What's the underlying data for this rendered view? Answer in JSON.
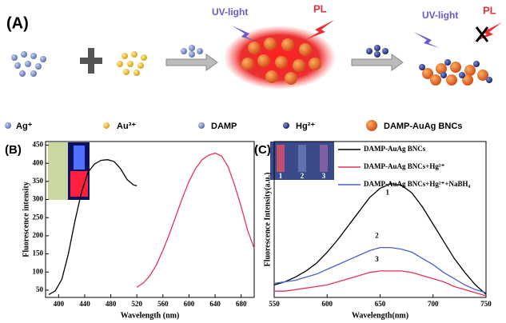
{
  "schematic": {
    "label": "(A)",
    "uv_left": "UV-light",
    "pl_left": "PL",
    "uv_right": "UV-light",
    "pl_right": "PL",
    "legend": [
      "Ag⁺",
      "Au³⁺",
      "DAMP",
      "Hg²⁺",
      "DAMP-AuAg BNCs"
    ]
  },
  "panel_labels": [
    "(B)",
    "(C)"
  ],
  "chart_data": [
    {
      "type": "line",
      "xlabel": "Wavelength (nm)",
      "ylabel": "Fluorescence intensity",
      "xlim": [
        380,
        700
      ],
      "xticks": [
        400,
        440,
        480,
        520,
        560,
        600,
        640,
        680
      ],
      "ylim": [
        30,
        460
      ],
      "yticks": [
        50,
        100,
        150,
        200,
        250,
        300,
        350,
        400,
        450
      ],
      "series": [
        {
          "color": "#000000",
          "x": [
            385,
            395,
            405,
            415,
            425,
            435,
            445,
            455,
            465,
            475,
            485,
            495,
            505,
            515,
            520
          ],
          "values": [
            38,
            48,
            80,
            150,
            240,
            320,
            375,
            398,
            408,
            410,
            405,
            385,
            355,
            340,
            338
          ]
        },
        {
          "color": "#e8325a",
          "x": [
            520,
            530,
            540,
            550,
            560,
            570,
            580,
            590,
            600,
            610,
            620,
            630,
            640,
            650,
            660,
            670,
            680,
            690,
            700
          ],
          "values": [
            58,
            70,
            90,
            120,
            160,
            205,
            255,
            305,
            350,
            385,
            410,
            422,
            428,
            420,
            390,
            340,
            280,
            215,
            165
          ]
        }
      ]
    },
    {
      "type": "line",
      "xlabel": "Wavelength(nm)",
      "ylabel": "Fluorescence Intensity(a.u.)",
      "xlim": [
        550,
        750
      ],
      "xticks": [
        550,
        600,
        650,
        700,
        750
      ],
      "ylim": [
        0,
        100
      ],
      "curve_labels": [
        "1",
        "2",
        "3"
      ],
      "tube_labels": [
        "1",
        "2",
        "3"
      ],
      "series": [
        {
          "name": "DAMP-AuAg BNCs",
          "color": "#000000",
          "x": [
            550,
            560,
            570,
            580,
            590,
            600,
            610,
            620,
            630,
            640,
            650,
            660,
            670,
            680,
            690,
            700,
            710,
            720,
            730,
            740,
            750
          ],
          "values": [
            8,
            10,
            13,
            17,
            22,
            29,
            37,
            46,
            55,
            64,
            70,
            73,
            72,
            67,
            58,
            47,
            36,
            25,
            16,
            8,
            2
          ]
        },
        {
          "name": "DAMP-AuAg BNCs+Hg²⁺",
          "color": "#e8325a",
          "x": [
            550,
            560,
            570,
            580,
            590,
            600,
            610,
            620,
            630,
            640,
            650,
            660,
            670,
            680,
            690,
            700,
            710,
            720,
            730,
            740,
            750
          ],
          "values": [
            4,
            4,
            5,
            6,
            7,
            8,
            10,
            12,
            14,
            16,
            17,
            17,
            17,
            16,
            14,
            12,
            10,
            7,
            5,
            3,
            1
          ]
        },
        {
          "name": "DAMP-AuAg BNCs+Hg²⁺+NaBH₄",
          "color": "#4a5fc9",
          "x": [
            550,
            560,
            570,
            580,
            590,
            600,
            610,
            620,
            630,
            640,
            650,
            660,
            670,
            680,
            690,
            700,
            710,
            720,
            730,
            740,
            750
          ],
          "values": [
            9,
            10,
            11,
            13,
            15,
            18,
            21,
            24,
            27,
            30,
            32,
            32,
            31,
            29,
            25,
            21,
            16,
            12,
            8,
            5,
            3
          ]
        }
      ]
    }
  ]
}
